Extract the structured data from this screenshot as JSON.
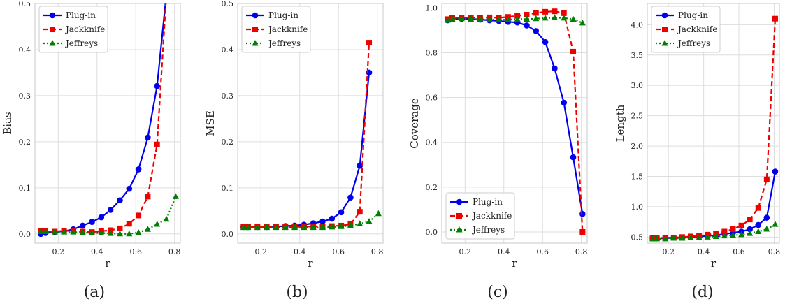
{
  "colors": {
    "plugin": "#0000ee",
    "jackknife": "#ee0000",
    "jeffreys": "#008000",
    "grid": "#dddddd",
    "frame": "#c8c8c8"
  },
  "chart_data": [
    {
      "type": "line",
      "caption": "(a)",
      "xlabel": "r",
      "ylabel": "Bias",
      "xlim": [
        0.08,
        0.83
      ],
      "ylim": [
        -0.02,
        0.5
      ],
      "xticks": [
        "0.2",
        "0.4",
        "0.6",
        "0.8"
      ],
      "xtick_values": [
        0.2,
        0.4,
        0.6,
        0.8
      ],
      "yticks": [
        "0.0",
        "0.1",
        "0.2",
        "0.3",
        "0.4",
        "0.5"
      ],
      "ytick_values": [
        0.0,
        0.1,
        0.2,
        0.3,
        0.4,
        0.5
      ],
      "grid": true,
      "legend": "top-left",
      "x": [
        0.11,
        0.134,
        0.182,
        0.23,
        0.278,
        0.326,
        0.374,
        0.422,
        0.47,
        0.518,
        0.566,
        0.614,
        0.662,
        0.71,
        0.758,
        0.806
      ],
      "series": [
        {
          "name": "Plug-in",
          "style": "solid",
          "marker": "circle",
          "values": [
            0.0,
            0.002,
            0.004,
            0.006,
            0.01,
            0.018,
            0.026,
            0.036,
            0.052,
            0.073,
            0.098,
            0.14,
            0.209,
            0.321,
            0.52,
            null
          ]
        },
        {
          "name": "Jackknife",
          "style": "dashed",
          "marker": "square",
          "values": [
            0.007,
            0.006,
            0.005,
            0.007,
            0.006,
            0.005,
            0.004,
            0.006,
            0.008,
            0.012,
            0.022,
            0.04,
            0.081,
            0.194,
            0.52,
            null
          ]
        },
        {
          "name": "Jeffreys",
          "style": "dotted",
          "marker": "triangle",
          "values": [
            0.005,
            0.005,
            0.004,
            0.004,
            0.004,
            0.003,
            0.002,
            0.002,
            0.001,
            0.0,
            0.0,
            0.003,
            0.01,
            0.021,
            0.032,
            0.081
          ]
        }
      ]
    },
    {
      "type": "line",
      "caption": "(b)",
      "xlabel": "r",
      "ylabel": "MSE",
      "xlim": [
        0.08,
        0.83
      ],
      "ylim": [
        -0.02,
        0.5
      ],
      "xticks": [
        "0.2",
        "0.4",
        "0.6",
        "0.8"
      ],
      "xtick_values": [
        0.2,
        0.4,
        0.6,
        0.8
      ],
      "yticks": [
        "0.0",
        "0.1",
        "0.2",
        "0.3",
        "0.4",
        "0.5"
      ],
      "ytick_values": [
        0.0,
        0.1,
        0.2,
        0.3,
        0.4,
        0.5
      ],
      "grid": true,
      "legend": "top-left",
      "x": [
        0.11,
        0.134,
        0.182,
        0.23,
        0.278,
        0.326,
        0.374,
        0.422,
        0.47,
        0.518,
        0.566,
        0.614,
        0.662,
        0.71,
        0.758,
        0.806
      ],
      "series": [
        {
          "name": "Plug-in",
          "style": "solid",
          "marker": "circle",
          "values": [
            0.015,
            0.015,
            0.015,
            0.015,
            0.016,
            0.017,
            0.018,
            0.02,
            0.023,
            0.027,
            0.033,
            0.047,
            0.079,
            0.148,
            0.35,
            null
          ]
        },
        {
          "name": "Jackknife",
          "style": "dashed",
          "marker": "square",
          "values": [
            0.015,
            0.015,
            0.015,
            0.015,
            0.015,
            0.015,
            0.015,
            0.016,
            0.016,
            0.016,
            0.017,
            0.018,
            0.021,
            0.048,
            0.415,
            null
          ]
        },
        {
          "name": "Jeffreys",
          "style": "dotted",
          "marker": "triangle",
          "values": [
            0.014,
            0.014,
            0.014,
            0.014,
            0.014,
            0.014,
            0.014,
            0.014,
            0.014,
            0.014,
            0.015,
            0.016,
            0.018,
            0.022,
            0.027,
            0.044
          ]
        }
      ]
    },
    {
      "type": "line",
      "caption": "(c)",
      "xlabel": "r",
      "ylabel": "Coverage",
      "xlim": [
        0.08,
        0.83
      ],
      "ylim": [
        -0.05,
        1.02
      ],
      "xticks": [
        "0.2",
        "0.4",
        "0.6",
        "0.8"
      ],
      "xtick_values": [
        0.2,
        0.4,
        0.6,
        0.8
      ],
      "yticks": [
        "0.0",
        "0.2",
        "0.4",
        "0.6",
        "0.8",
        "1.0"
      ],
      "ytick_values": [
        0.0,
        0.2,
        0.4,
        0.6,
        0.8,
        1.0
      ],
      "grid": true,
      "legend": "bottom-left",
      "x": [
        0.11,
        0.134,
        0.182,
        0.23,
        0.278,
        0.326,
        0.374,
        0.422,
        0.47,
        0.518,
        0.566,
        0.614,
        0.662,
        0.71,
        0.758,
        0.806
      ],
      "series": [
        {
          "name": "Plug-in",
          "style": "solid",
          "marker": "circle",
          "values": [
            0.945,
            0.95,
            0.952,
            0.95,
            0.948,
            0.945,
            0.942,
            0.938,
            0.935,
            0.922,
            0.897,
            0.848,
            0.73,
            0.577,
            0.333,
            0.08
          ]
        },
        {
          "name": "Jackknife",
          "style": "dashed",
          "marker": "square",
          "values": [
            0.95,
            0.955,
            0.957,
            0.957,
            0.957,
            0.958,
            0.956,
            0.96,
            0.965,
            0.97,
            0.978,
            0.983,
            0.985,
            0.977,
            0.805,
            0.0
          ]
        },
        {
          "name": "Jeffreys",
          "style": "dotted",
          "marker": "triangle",
          "values": [
            0.945,
            0.95,
            0.952,
            0.95,
            0.95,
            0.948,
            0.948,
            0.947,
            0.95,
            0.95,
            0.952,
            0.955,
            0.957,
            0.955,
            0.95,
            0.933
          ]
        }
      ]
    },
    {
      "type": "line",
      "caption": "(d)",
      "xlabel": "r",
      "ylabel": "Length",
      "xlim": [
        0.08,
        0.83
      ],
      "ylim": [
        0.4,
        4.35
      ],
      "xticks": [
        "0.2",
        "0.4",
        "0.6",
        "0.8"
      ],
      "xtick_values": [
        0.2,
        0.4,
        0.6,
        0.8
      ],
      "yticks": [
        "0.5",
        "1.0",
        "1.5",
        "2.0",
        "2.5",
        "3.0",
        "3.5",
        "4.0"
      ],
      "ytick_values": [
        0.5,
        1.0,
        1.5,
        2.0,
        2.5,
        3.0,
        3.5,
        4.0
      ],
      "grid": true,
      "legend": "top-left",
      "x": [
        0.11,
        0.134,
        0.182,
        0.23,
        0.278,
        0.326,
        0.374,
        0.422,
        0.47,
        0.518,
        0.566,
        0.614,
        0.662,
        0.71,
        0.758,
        0.806
      ],
      "series": [
        {
          "name": "Plug-in",
          "style": "solid",
          "marker": "circle",
          "values": [
            0.48,
            0.48,
            0.48,
            0.49,
            0.49,
            0.5,
            0.51,
            0.52,
            0.53,
            0.55,
            0.57,
            0.59,
            0.63,
            0.7,
            0.82,
            1.58
          ]
        },
        {
          "name": "Jackknife",
          "style": "dashed",
          "marker": "square",
          "values": [
            0.48,
            0.48,
            0.49,
            0.49,
            0.5,
            0.51,
            0.52,
            0.54,
            0.56,
            0.59,
            0.63,
            0.69,
            0.79,
            0.98,
            1.45,
            4.1
          ]
        },
        {
          "name": "Jeffreys",
          "style": "dotted",
          "marker": "triangle",
          "values": [
            0.47,
            0.47,
            0.47,
            0.48,
            0.48,
            0.49,
            0.49,
            0.5,
            0.51,
            0.52,
            0.53,
            0.54,
            0.56,
            0.59,
            0.63,
            0.71
          ]
        }
      ]
    }
  ]
}
